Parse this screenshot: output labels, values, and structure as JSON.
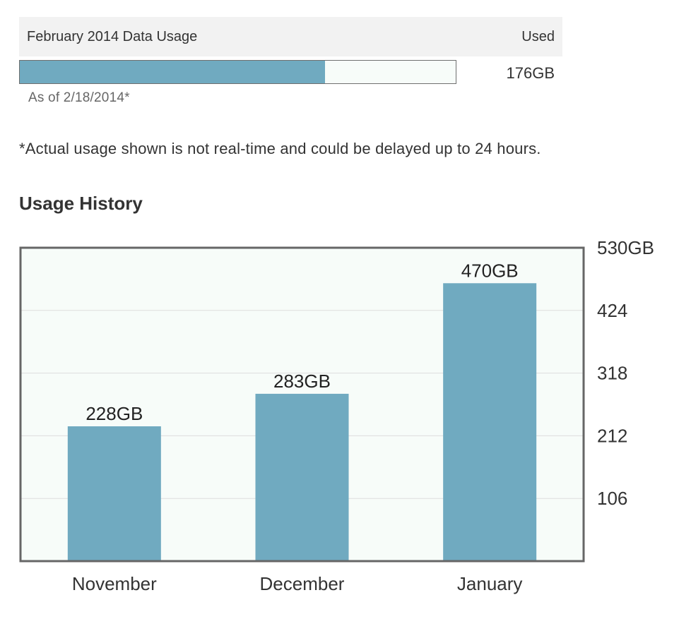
{
  "current_usage": {
    "title": "February 2014 Data Usage",
    "used_header": "Used",
    "used_value": "176GB",
    "as_of": "As of  2/18/2014*",
    "fill_fraction": 0.7,
    "bar_color": "#70aac0",
    "bar_background": "#f7fcf9"
  },
  "disclaimer": "*Actual usage shown is not real-time and could be delayed up to 24 hours.",
  "history": {
    "title": "Usage History"
  },
  "chart_data": {
    "type": "bar",
    "categories": [
      "November",
      "December",
      "January"
    ],
    "values": [
      228,
      283,
      470
    ],
    "value_labels": [
      "228GB",
      "283GB",
      "470GB"
    ],
    "ylim": [
      0,
      530
    ],
    "yticks": [
      106,
      212,
      318,
      424,
      530
    ],
    "ytick_labels": [
      "106",
      "212",
      "318",
      "424",
      "530GB"
    ],
    "y_axis_side": "right",
    "grid": true,
    "bar_color": "#70aac0",
    "plot_background": "#f7fcf9",
    "frame_color": "#666666",
    "grid_color": "#dddddd"
  }
}
